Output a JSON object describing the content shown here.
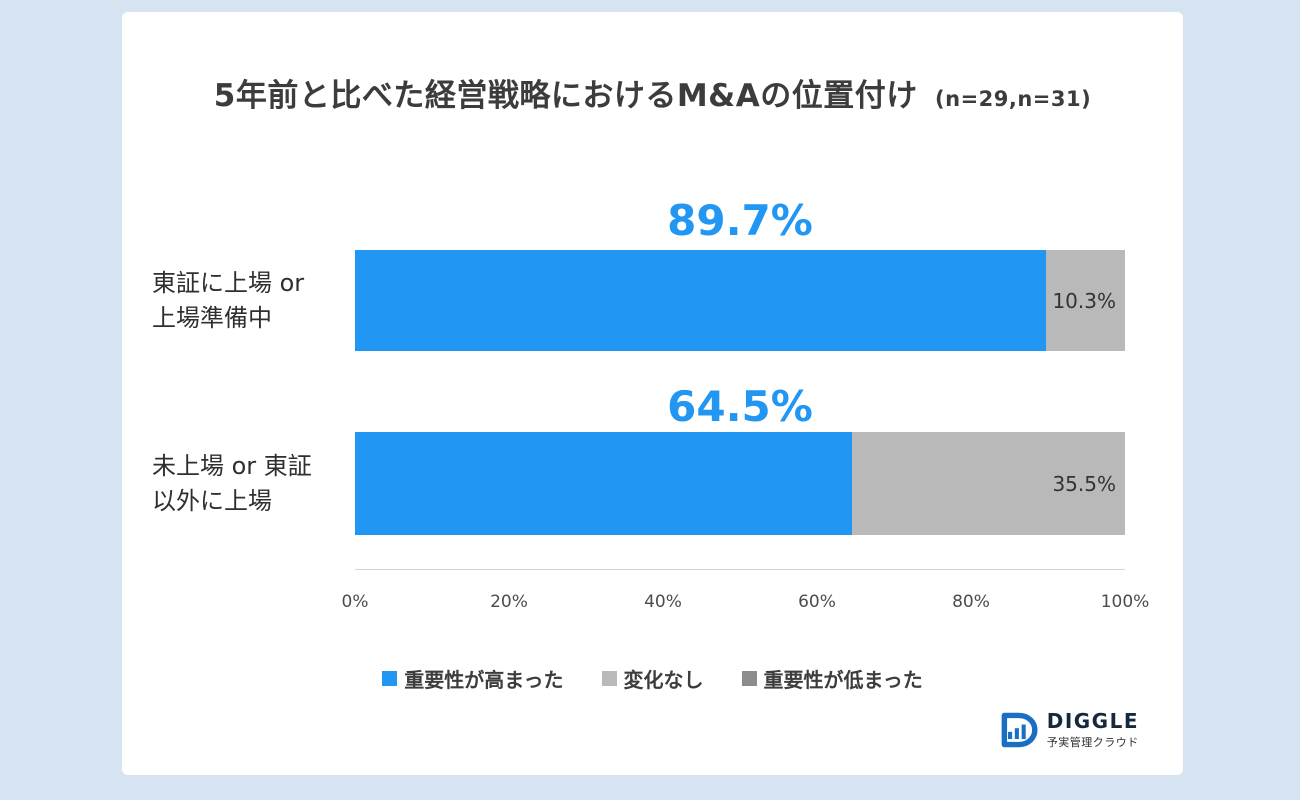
{
  "title": {
    "text": "5年前と比べた経営戦略におけるM&Aの位置付け",
    "sample_note": "(n=29,n=31)"
  },
  "chart_data": {
    "type": "bar",
    "orientation": "horizontal",
    "stacked": true,
    "title": "5年前と比べた経営戦略におけるM&Aの位置付け (n=29,n=31)",
    "categories": [
      "東証に上場 or\n上場準備中",
      "未上場 or 東証\n以外に上場"
    ],
    "series": [
      {
        "name": "重要性が高まった",
        "color": "#2196f3",
        "values": [
          89.7,
          64.5
        ]
      },
      {
        "name": "変化なし",
        "color": "#b9b9b9",
        "values": [
          10.3,
          35.5
        ]
      },
      {
        "name": "重要性が低まった",
        "color": "#8c8c8c",
        "values": [
          0,
          0
        ]
      }
    ],
    "xlim": [
      0,
      100
    ],
    "x_ticks": [
      "0%",
      "20%",
      "40%",
      "60%",
      "80%",
      "100%"
    ],
    "bar_value_labels": [
      "89.7%",
      "64.5%"
    ],
    "segment_value_labels": [
      "10.3%",
      "35.5%"
    ],
    "legend_position": "bottom",
    "grid": false
  },
  "footer": {
    "logo_text": "DIGGLE",
    "logo_tagline": "予実管理クラウド"
  },
  "colors": {
    "page_background": "#d6e4f2",
    "card_background": "#ffffff",
    "accent_blue": "#2196f3",
    "neutral_gray": "#b9b9b9",
    "dark_gray": "#8c8c8c",
    "text": "#3c3c3c"
  }
}
